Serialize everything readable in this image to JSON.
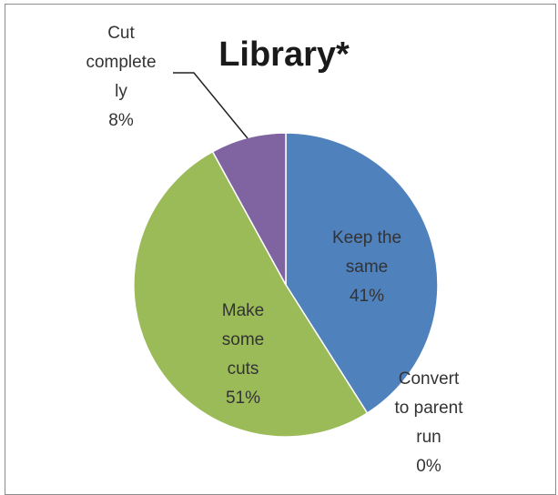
{
  "chart_data": {
    "type": "pie",
    "title": "Library*",
    "slices": [
      {
        "label": [
          "Keep the",
          "same"
        ],
        "value": 41,
        "percent_label": "41%",
        "color": "#4f81bd"
      },
      {
        "label": [
          "Convert",
          "to parent",
          "run"
        ],
        "value": 0,
        "percent_label": "0%",
        "color": "#c0504d"
      },
      {
        "label": [
          "Make",
          "some",
          "cuts"
        ],
        "value": 51,
        "percent_label": "51%",
        "color": "#9bbb59"
      },
      {
        "label": [
          "Cut",
          "complete",
          "ly"
        ],
        "value": 8,
        "percent_label": "8%",
        "color": "#8064a2"
      }
    ],
    "legend": "none",
    "start_angle_deg": 0,
    "direction": "clockwise"
  }
}
